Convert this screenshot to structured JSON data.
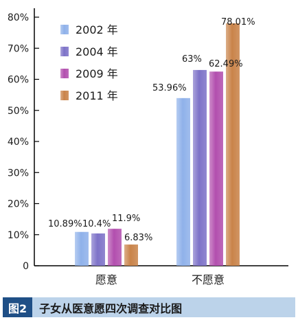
{
  "chart_data": {
    "type": "bar",
    "categories": [
      "愿意",
      "不愿意"
    ],
    "series": [
      {
        "name": "2002 年",
        "values": [
          10.89,
          53.96
        ],
        "labels": [
          "10.89%",
          "53.96%"
        ],
        "color": "#8fb1ea"
      },
      {
        "name": "2004 年",
        "values": [
          10.4,
          63
        ],
        "labels": [
          "10.4%",
          "63%"
        ],
        "color": "#7d72c8"
      },
      {
        "name": "2009 年",
        "values": [
          11.9,
          62.49
        ],
        "labels": [
          "11.9%",
          "62.49%"
        ],
        "color": "#b24fae"
      },
      {
        "name": "2011 年",
        "values": [
          6.83,
          78.01
        ],
        "labels": [
          "6.83%",
          "78.01%"
        ],
        "color": "#c98349"
      }
    ],
    "y_ticks": [
      "0",
      "10%",
      "20%",
      "30%",
      "40%",
      "50%",
      "60%",
      "70%",
      "80%"
    ],
    "ylim": [
      0,
      80
    ],
    "legend_position": "top-left",
    "grid": false
  },
  "caption": {
    "badge": "图2",
    "title": "子女从医意愿四次调查对比图"
  },
  "colors": {
    "caption_bg": "#bcd3ea",
    "badge_bg": "#1f4f86"
  }
}
